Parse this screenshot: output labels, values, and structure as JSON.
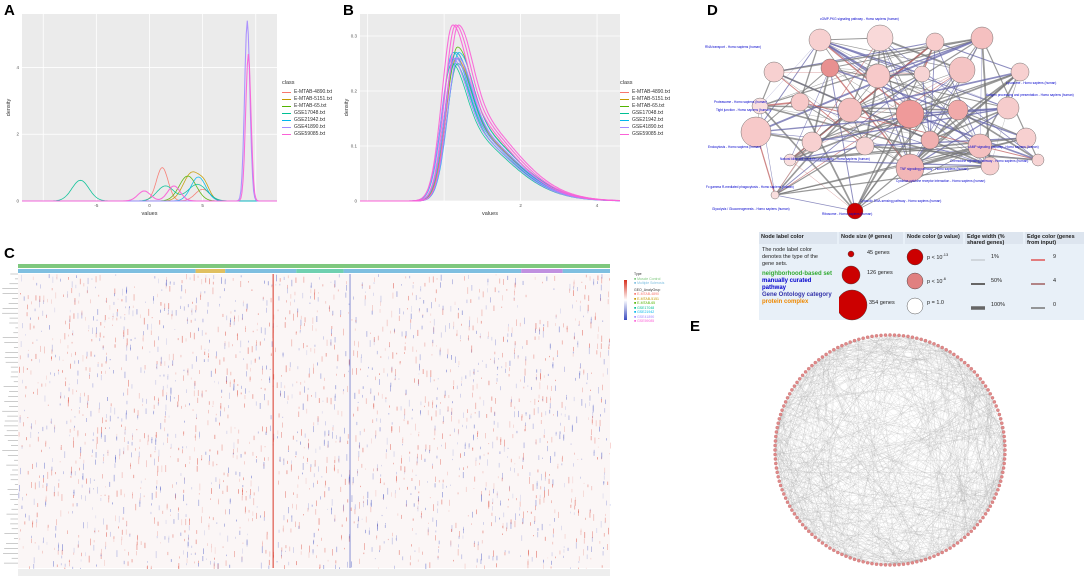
{
  "panels": {
    "a": "A",
    "b": "B",
    "c": "C",
    "d": "D",
    "e": "E"
  },
  "colors": {
    "ggbg": "#ebebeb",
    "grid": "#ffffff",
    "series": [
      "#f8766d",
      "#c49a00",
      "#53b400",
      "#00c094",
      "#00b6eb",
      "#a58aff",
      "#fb61d7"
    ],
    "heat_red": "#d7301f",
    "heat_blue": "#3b4cc0",
    "node_fill": "#f7c9c9",
    "node_dark": "#cc0000",
    "edge": "#777777"
  },
  "chart_data": [
    {
      "type": "line",
      "id": "A",
      "title": "",
      "xlabel": "values",
      "ylabel": "density",
      "xlim": [
        -12,
        12
      ],
      "ylim": [
        0,
        5.6
      ],
      "xticks": [
        -10,
        -5,
        0,
        5,
        10
      ],
      "xtick_labels": [
        "",
        "-5",
        "0",
        "5",
        ""
      ],
      "yticks": [
        0,
        2,
        4
      ],
      "legend_title": "class",
      "legend_position": "right",
      "series": [
        {
          "name": "E-MTAB-4890.txt",
          "peaks": [
            [
              1.2,
              1.0,
              0.55
            ],
            [
              5.0,
              0.35,
              0.7
            ]
          ]
        },
        {
          "name": "E-MTAB-5151.txt",
          "peaks": [
            [
              4.0,
              0.85,
              0.8
            ],
            [
              5.2,
              0.35,
              0.5
            ]
          ]
        },
        {
          "name": "E-MTAB-65.txt",
          "peaks": [
            [
              3.6,
              0.75,
              0.8
            ]
          ]
        },
        {
          "name": "GSE17048.txt",
          "peaks": [
            [
              -6.5,
              0.62,
              0.8
            ],
            [
              1.5,
              0.45,
              0.8
            ],
            [
              4.5,
              0.5,
              0.9
            ]
          ]
        },
        {
          "name": "GSE21942.txt",
          "peaks": [
            [
              4.6,
              0.72,
              0.7
            ]
          ]
        },
        {
          "name": "GSE41890.txt",
          "peaks": [
            [
              9.2,
              5.4,
              0.25
            ]
          ]
        },
        {
          "name": "GSE59085.txt",
          "peaks": [
            [
              -0.5,
              0.3,
              0.6
            ],
            [
              2.3,
              0.45,
              0.6
            ],
            [
              9.3,
              4.4,
              0.25
            ]
          ]
        }
      ]
    },
    {
      "type": "line",
      "id": "B",
      "title": "",
      "xlabel": "values",
      "ylabel": "density",
      "xlim": [
        -2.2,
        4.6
      ],
      "ylim": [
        0,
        0.34
      ],
      "xticks": [
        -2,
        0,
        2,
        4
      ],
      "xtick_labels": [
        "",
        "",
        "2",
        "4"
      ],
      "yticks": [
        0,
        0.1,
        0.2,
        0.3
      ],
      "ytick_labels": [
        "0",
        "0.1",
        "0.2",
        "0.3"
      ],
      "legend_title": "class",
      "legend_position": "right",
      "series": [
        {
          "name": "E-MTAB-4890.txt",
          "peak": 0.3,
          "peak_y": 0.27
        },
        {
          "name": "E-MTAB-5151.txt",
          "peak": 0.32,
          "peak_y": 0.26
        },
        {
          "name": "E-MTAB-65.txt",
          "peak": 0.35,
          "peak_y": 0.28
        },
        {
          "name": "GSE17048.txt",
          "peak": 0.28,
          "peak_y": 0.25
        },
        {
          "name": "GSE21942.txt",
          "peak": 0.31,
          "peak_y": 0.27
        },
        {
          "name": "GSE41890.txt",
          "peak": 0.29,
          "peak_y": 0.26
        },
        {
          "name": "GSE59085.txt",
          "peak": 0.3,
          "peak_y": 0.32
        }
      ]
    },
    {
      "type": "heatmap",
      "id": "C",
      "legend": {
        "title1": "Type",
        "items1": [
          "Muscle Control",
          "Multiple Sclerosis"
        ],
        "title2": "GEO_AnalyGrup",
        "items2": [
          "E-MTAB-4890",
          "E-MTAB-5151",
          "E-MTAB-65",
          "GSE17048",
          "GSE21942",
          "GSE41890",
          "GSE59085"
        ]
      },
      "top_annotation_label": "Type",
      "top_annotation_label2": "GEO_AnalyGrup"
    }
  ],
  "network": {
    "labels": [
      "RNA transport - Homo sapiens (human)",
      "cGMP-PKG signaling pathway - Homo sapiens (human)",
      "Tight junction - Homo sapiens (human)",
      "Proteasome - Homo sapiens (human)",
      "Lysosome - Homo sapiens (human)",
      "Antigen processing and presentation - Homo sapiens (human)",
      "Endocytosis - Homo sapiens (human)",
      "Natural killer cell mediated cytotoxicity - Homo sapiens (human)",
      "Chemokine signaling pathway - Homo sapiens (human)",
      "TNF signaling pathway - Homo sapiens (human)",
      "Cytosolic DNA-sensing pathway - Homo sapiens (human)",
      "Fc gamma R-mediated phagocytosis - Homo sapiens (human)",
      "Glycolysis / Gluconeogenesis - Homo sapiens (human)",
      "Ribosome - Homo sapiens (human)",
      "Cytokine-cytokine receptor interaction - Homo sapiens (human)",
      "cAMP signaling pathway - Homo sapiens (human)"
    ],
    "legend": {
      "label_color_head": "Node label color",
      "label_color_text": "The node label color denotes the type of the gene sets.",
      "cat1": "neighborhood-based set",
      "cat2": "manually curated pathway",
      "cat3": "Gene Ontology category",
      "cat4": "protein complex",
      "size_head": "Node size (# genes)",
      "size_items": [
        "45 genes",
        "126 genes",
        "354 genes"
      ],
      "color_head": "Node color (p value)",
      "color_items": [
        "p < 10",
        "p < 10",
        "p = 1.0"
      ],
      "color_exps": [
        "-13",
        "-6",
        ""
      ],
      "width_head": "Edge width (% shared genes)",
      "width_items": [
        "1%",
        "50%",
        "100%"
      ],
      "ecolor_head": "Edge color (genes from input)",
      "ecolor_items": [
        "9",
        "4",
        "0"
      ],
      "cat_colors": [
        "#33aa33",
        "#0000cc",
        "#3333aa",
        "#ee8800"
      ]
    }
  }
}
